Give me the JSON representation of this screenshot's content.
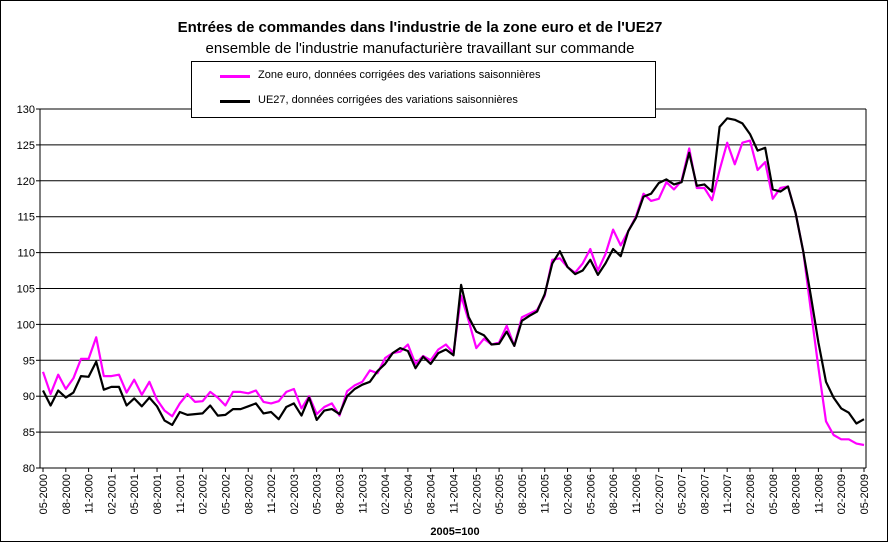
{
  "chart_data": {
    "type": "line",
    "title": "Entrées de commandes dans l'industrie de la zone euro et de l'UE27",
    "subtitle": "ensemble de l'industrie manufacturière travaillant sur commande",
    "xlabel": "2005=100",
    "ylabel": "",
    "ylim": [
      80,
      130
    ],
    "yticks": [
      80,
      85,
      90,
      95,
      100,
      105,
      110,
      115,
      120,
      125,
      130
    ],
    "xticks": [
      "05-2000",
      "08-2000",
      "11-2000",
      "02-2001",
      "05-2001",
      "08-2001",
      "11-2001",
      "02-2002",
      "05-2002",
      "08-2002",
      "11-2002",
      "02-2003",
      "05-2003",
      "08-2003",
      "11-2003",
      "02-2004",
      "05-2004",
      "08-2004",
      "11-2004",
      "02-2005",
      "05-2005",
      "08-2005",
      "11-2005",
      "02-2006",
      "05-2006",
      "08-2006",
      "11-2006",
      "02-2007",
      "05-2007",
      "08-2007",
      "11-2007",
      "02-2008",
      "05-2008",
      "08-2008",
      "11-2008",
      "02-2009",
      "05-2009"
    ],
    "grid": true,
    "legend_position": "top-center",
    "series": [
      {
        "name": "Zone euro, données corrigées des variations saisonnières",
        "color": "#ff00ff",
        "values": [
          93.4,
          90.3,
          93.0,
          91.0,
          92.5,
          95.2,
          95.2,
          98.2,
          92.8,
          92.8,
          93.0,
          90.5,
          92.3,
          90.2,
          92.0,
          89.5,
          88.0,
          87.2,
          89.0,
          90.3,
          89.2,
          89.3,
          90.6,
          89.8,
          88.7,
          90.6,
          90.6,
          90.4,
          90.8,
          89.2,
          89.0,
          89.3,
          90.6,
          91.0,
          88.3,
          90.0,
          87.5,
          88.5,
          89.0,
          87.3,
          90.7,
          91.5,
          92.0,
          93.6,
          93.2,
          95.3,
          96.0,
          96.2,
          97.2,
          94.5,
          95.6,
          95.0,
          96.5,
          97.2,
          96.0,
          104.0,
          100.5,
          96.7,
          98.0,
          97.2,
          97.5,
          99.8,
          97.0,
          101.0,
          101.5,
          102.0,
          104.0,
          109.0,
          109.2,
          108.0,
          107.2,
          108.5,
          110.5,
          107.5,
          109.8,
          113.2,
          111.0,
          113.0,
          115.0,
          118.2,
          117.2,
          117.5,
          119.8,
          118.8,
          120.0,
          124.5,
          119.0,
          119.0,
          117.3,
          121.5,
          125.3,
          122.3,
          125.3,
          125.6,
          121.5,
          122.6,
          117.5,
          119.0,
          119.2,
          115.5,
          110.2,
          102.0,
          94.0,
          86.5,
          84.6,
          84.0,
          84.0,
          83.4,
          83.2
        ],
        "note": ""
      },
      {
        "name": "UE27, données corrigées des variations saisonnières",
        "color": "#000000",
        "values": [
          90.8,
          88.7,
          90.8,
          89.8,
          90.5,
          92.8,
          92.7,
          94.8,
          90.9,
          91.3,
          91.3,
          88.7,
          89.7,
          88.6,
          89.8,
          88.6,
          86.6,
          86.0,
          87.8,
          87.4,
          87.5,
          87.6,
          88.7,
          87.3,
          87.4,
          88.2,
          88.2,
          88.6,
          89.0,
          87.6,
          87.8,
          86.8,
          88.5,
          89.0,
          87.3,
          89.8,
          86.7,
          88.0,
          88.2,
          87.5,
          90.0,
          91.0,
          91.6,
          92.0,
          93.5,
          94.5,
          96.0,
          96.7,
          96.3,
          93.9,
          95.5,
          94.5,
          96.0,
          96.5,
          95.7,
          105.5,
          101.0,
          99.0,
          98.5,
          97.2,
          97.3,
          99.0,
          97.0,
          100.5,
          101.2,
          101.8,
          104.2,
          108.5,
          110.2,
          108.0,
          107.0,
          107.5,
          109.0,
          106.9,
          108.5,
          110.5,
          109.5,
          113.0,
          114.8,
          117.8,
          118.2,
          119.7,
          120.2,
          119.5,
          119.8,
          123.9,
          119.3,
          119.5,
          118.5,
          127.5,
          128.7,
          128.5,
          128.0,
          126.5,
          124.2,
          124.6,
          118.8,
          118.5,
          119.2,
          115.5,
          110.2,
          104.0,
          97.5,
          92.0,
          89.8,
          88.3,
          87.7,
          86.2,
          86.8
        ],
        "note": ""
      }
    ]
  }
}
